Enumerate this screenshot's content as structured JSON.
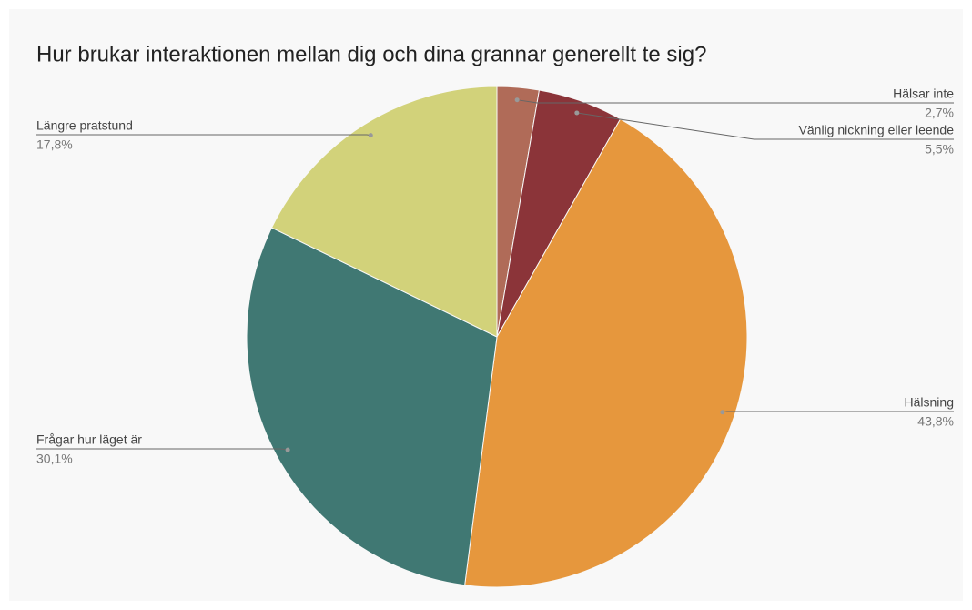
{
  "chart_data": {
    "type": "pie",
    "title": "Hur brukar interaktionen mellan dig och dina grannar generellt te sig?",
    "categories": [
      "Hälsar inte",
      "Vänlig nickning eller leende",
      "Hälsning",
      "Frågar hur läget är",
      "Längre pratstund"
    ],
    "values": [
      2.7,
      5.5,
      43.8,
      30.1,
      17.8
    ],
    "value_labels": [
      "2,7%",
      "5,5%",
      "43,8%",
      "30,1%",
      "17,8%"
    ],
    "colors": [
      "#b06b58",
      "#8b3439",
      "#e6973d",
      "#407873",
      "#d2d27a"
    ]
  }
}
